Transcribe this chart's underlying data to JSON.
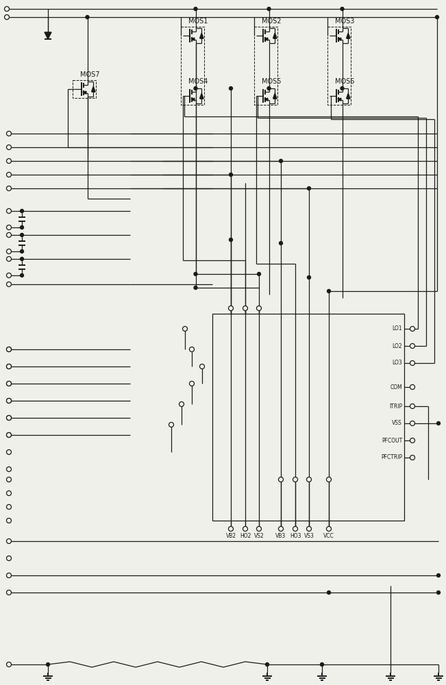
{
  "bg_color": "#f0f0eb",
  "line_color": "#1a1a1a",
  "lw": 0.9,
  "lw2": 1.4,
  "ic_pins_bottom": [
    "VB2",
    "HO2",
    "VS2",
    "VB3",
    "HO3",
    "VS3",
    "VCC"
  ],
  "ic_pins_right": [
    "LO1",
    "LO2",
    "LO3",
    "COM",
    "ITRIP",
    "VSS",
    "PFCOUT",
    "PFCTRIP"
  ],
  "mos_labels": [
    "MOS1",
    "MOS2",
    "MOS3",
    "MOS4",
    "MOS5",
    "MOS6",
    "MOS7"
  ]
}
